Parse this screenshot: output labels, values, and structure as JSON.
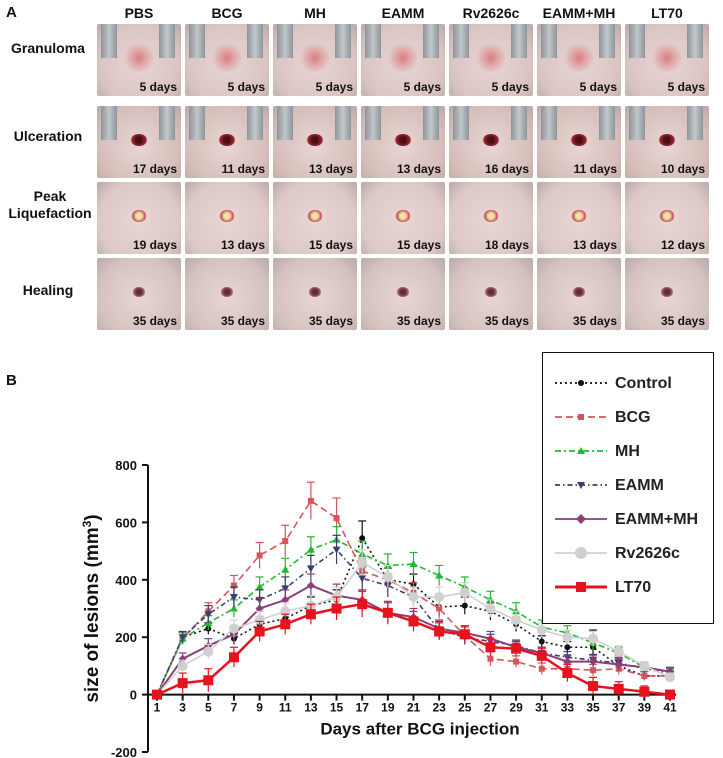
{
  "panel_a": {
    "label": "A",
    "columns": [
      "PBS",
      "BCG",
      "MH",
      "EAMM",
      "Rv2626c",
      "EAMM+MH",
      "LT70"
    ],
    "rows": [
      {
        "label": "Granuloma",
        "days": [
          "5 days",
          "5 days",
          "5 days",
          "5 days",
          "5 days",
          "5 days",
          "5 days"
        ]
      },
      {
        "label": "Ulceration",
        "days": [
          "17 days",
          "11 days",
          "13 days",
          "13 days",
          "16 days",
          "11 days",
          "10 days"
        ]
      },
      {
        "label": "Peak Liquefaction",
        "days": [
          "19 days",
          "13 days",
          "15 days",
          "15 days",
          "18 days",
          "13 days",
          "12 days"
        ]
      },
      {
        "label": "Healing",
        "days": [
          "35 days",
          "35 days",
          "35 days",
          "35 days",
          "35 days",
          "35 days",
          "35 days"
        ]
      }
    ],
    "colors": {
      "skin": "#ddc7c3",
      "lesion_red": "#b8303a",
      "clamp": "#9aa0a6"
    }
  },
  "chart_data": {
    "type": "line",
    "panel_label": "B",
    "title": "",
    "xlabel": "Days after BCG injection",
    "ylabel": "size of lesions (mm",
    "ylabel_sup": "3",
    "ylabel_close": ")",
    "x": [
      1,
      3,
      5,
      7,
      9,
      11,
      13,
      15,
      17,
      19,
      21,
      23,
      25,
      27,
      29,
      31,
      33,
      35,
      37,
      39,
      41
    ],
    "x_tick_labels": [
      "1",
      "3",
      "5",
      "7",
      "9",
      "11",
      "13",
      "15",
      "17",
      "19",
      "21",
      "23",
      "25",
      "27",
      "29",
      "31",
      "33",
      "35",
      "37",
      "39",
      "41"
    ],
    "y_ticks": [
      -200,
      0,
      200,
      400,
      600,
      800
    ],
    "y_tick_labels": [
      "-200",
      "0",
      "200",
      "400",
      "600",
      "800"
    ],
    "ylim": [
      -200,
      800
    ],
    "xlim": [
      1,
      41
    ],
    "legend_position": "top-right",
    "series": [
      {
        "name": "Control",
        "color": "#111111",
        "dash": "2,3",
        "marker": "circle",
        "values": [
          0,
          200,
          230,
          195,
          245,
          265,
          310,
          330,
          545,
          400,
          385,
          305,
          310,
          290,
          245,
          185,
          165,
          165,
          100,
          65,
          65
        ],
        "errors": [
          0,
          15,
          20,
          20,
          25,
          25,
          30,
          35,
          60,
          40,
          35,
          30,
          30,
          30,
          25,
          20,
          20,
          60,
          20,
          15,
          15
        ]
      },
      {
        "name": "BCG",
        "color": "#d8545b",
        "dash": "7,4",
        "marker": "square",
        "values": [
          0,
          195,
          290,
          380,
          485,
          535,
          675,
          615,
          430,
          400,
          355,
          300,
          205,
          125,
          115,
          90,
          90,
          85,
          90,
          65,
          65
        ],
        "errors": [
          0,
          20,
          30,
          35,
          45,
          55,
          65,
          70,
          45,
          40,
          35,
          35,
          30,
          25,
          20,
          20,
          20,
          20,
          20,
          15,
          15
        ]
      },
      {
        "name": "MH",
        "color": "#22b833",
        "dash": "6,3,2,3",
        "marker": "triangle",
        "values": [
          0,
          195,
          250,
          300,
          375,
          435,
          505,
          540,
          490,
          450,
          455,
          415,
          375,
          330,
          290,
          235,
          215,
          180,
          145,
          95,
          80
        ],
        "errors": [
          0,
          20,
          25,
          30,
          35,
          40,
          45,
          45,
          45,
          40,
          40,
          35,
          35,
          30,
          30,
          25,
          25,
          25,
          20,
          15,
          15
        ]
      },
      {
        "name": "EAMM",
        "color": "#3b3d70",
        "dash": "5,3,1.5,3",
        "marker": "triangle-down",
        "values": [
          0,
          200,
          280,
          340,
          330,
          370,
          440,
          505,
          405,
          380,
          340,
          225,
          200,
          185,
          170,
          145,
          130,
          120,
          110,
          90,
          75
        ],
        "errors": [
          0,
          20,
          30,
          35,
          35,
          40,
          45,
          50,
          40,
          40,
          35,
          30,
          25,
          25,
          20,
          20,
          20,
          20,
          20,
          15,
          15
        ]
      },
      {
        "name": "EAMM+MH",
        "color": "#8a3f79",
        "dash": "",
        "marker": "diamond",
        "values": [
          0,
          125,
          170,
          210,
          300,
          330,
          380,
          345,
          330,
          285,
          270,
          230,
          215,
          195,
          165,
          145,
          115,
          115,
          105,
          95,
          80
        ],
        "errors": [
          0,
          20,
          25,
          30,
          35,
          35,
          40,
          40,
          35,
          35,
          30,
          30,
          25,
          25,
          20,
          20,
          20,
          20,
          20,
          15,
          15
        ]
      },
      {
        "name": "Rv2626c",
        "color": "#d0d0d0",
        "dash": "",
        "marker": "circle",
        "values": [
          0,
          100,
          150,
          230,
          260,
          290,
          310,
          340,
          460,
          410,
          340,
          340,
          355,
          300,
          260,
          225,
          200,
          195,
          150,
          100,
          60
        ],
        "errors": [
          0,
          20,
          25,
          30,
          30,
          30,
          35,
          35,
          45,
          40,
          35,
          35,
          35,
          30,
          30,
          25,
          25,
          25,
          20,
          15,
          15
        ]
      },
      {
        "name": "LT70",
        "color": "#e8121e",
        "dash": "",
        "marker": "square-big",
        "values": [
          0,
          40,
          50,
          130,
          220,
          245,
          280,
          300,
          315,
          285,
          255,
          220,
          210,
          165,
          160,
          135,
          75,
          30,
          20,
          10,
          0
        ],
        "errors": [
          0,
          35,
          40,
          35,
          35,
          35,
          35,
          40,
          45,
          40,
          35,
          30,
          30,
          30,
          25,
          25,
          30,
          30,
          25,
          20,
          15
        ]
      }
    ]
  }
}
